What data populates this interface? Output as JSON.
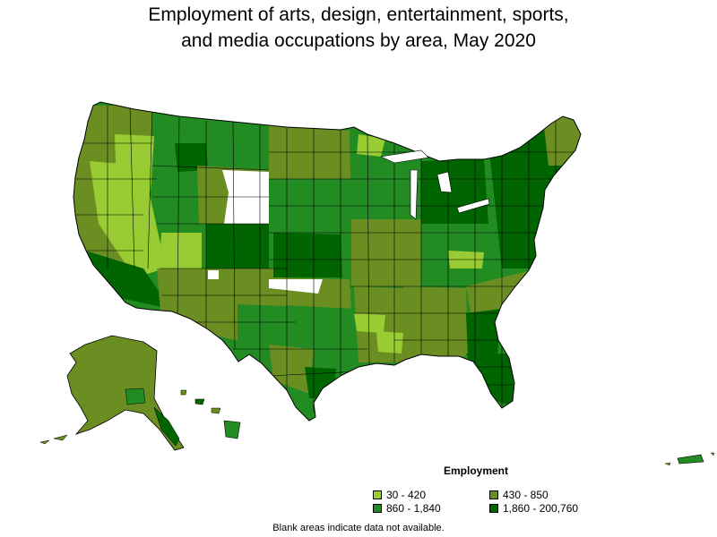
{
  "title_line1": "Employment of arts, design, entertainment, sports,",
  "title_line2": "and media occupations by area, May 2020",
  "legend": {
    "title": "Employment",
    "items": [
      {
        "label": "30 - 420",
        "color": "#99cc33"
      },
      {
        "label": "430 - 850",
        "color": "#6b8e23"
      },
      {
        "label": "860 - 1,840",
        "color": "#228b22"
      },
      {
        "label": "1,860 - 200,760",
        "color": "#006400"
      }
    ]
  },
  "note": "Blank areas indicate data not available.",
  "colors": {
    "no_data": "#ffffff",
    "border": "#000000"
  }
}
